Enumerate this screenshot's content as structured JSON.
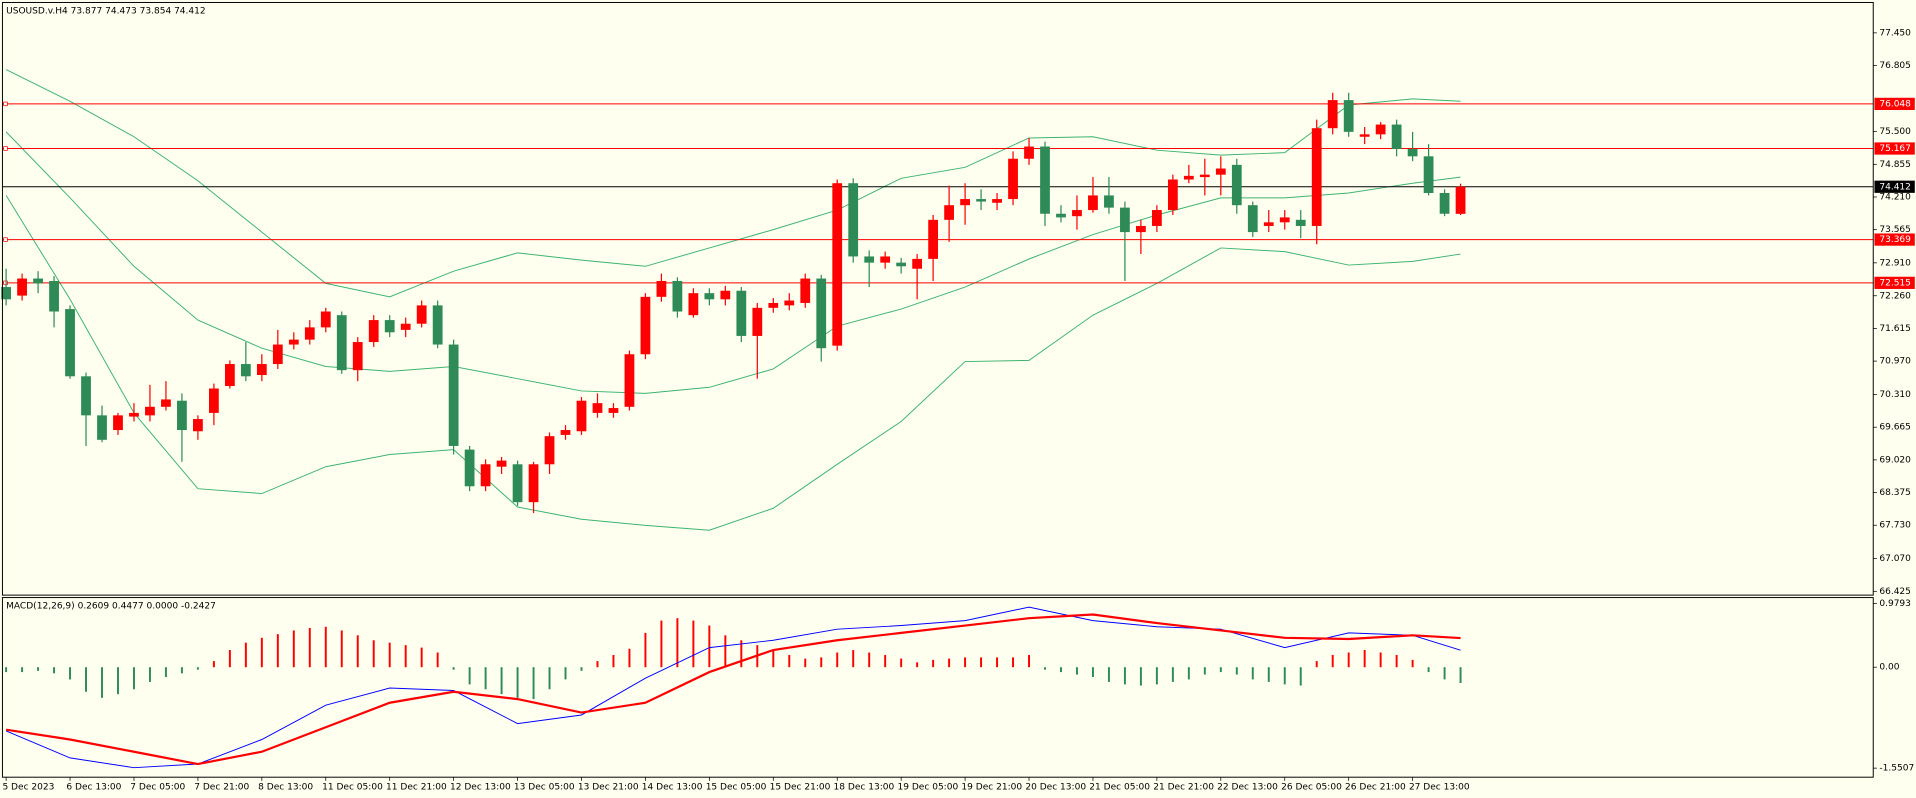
{
  "chart_data": [
    {
      "type": "candlestick",
      "title": "USOUSD.v.H4  73.877 74.473 73.854 74.412",
      "categories": [
        "5 Dec 2023",
        null,
        null,
        null,
        "6 Dec 13:00",
        null,
        null,
        null,
        "7 Dec 05:00",
        null,
        null,
        null,
        "7 Dec 21:00",
        null,
        null,
        null,
        "8 Dec 13:00",
        null,
        null,
        null,
        "11 Dec 05:00",
        null,
        null,
        null,
        "11 Dec 21:00",
        null,
        null,
        null,
        "12 Dec 13:00",
        null,
        null,
        null,
        "13 Dec 05:00",
        null,
        null,
        null,
        "13 Dec 21:00",
        null,
        null,
        null,
        "14 Dec 13:00",
        null,
        null,
        null,
        "15 Dec 05:00",
        null,
        null,
        null,
        "15 Dec 21:00",
        null,
        null,
        null,
        "18 Dec 13:00",
        null,
        null,
        null,
        "19 Dec 05:00",
        null,
        null,
        null,
        "19 Dec 21:00",
        null,
        null,
        null,
        "20 Dec 13:00",
        null,
        null,
        null,
        "21 Dec 05:00",
        null,
        null,
        null,
        "21 Dec 21:00",
        null,
        null,
        null,
        "22 Dec 13:00",
        null,
        null,
        null,
        "26 Dec 05:00",
        null,
        null,
        null,
        "26 Dec 21:00",
        null,
        null,
        null,
        "27 Dec 13:00",
        null,
        null,
        null
      ],
      "open": [
        72.432,
        72.263,
        72.6,
        72.552,
        71.997,
        70.67,
        69.899,
        69.609,
        69.875,
        69.899,
        70.068,
        70.188,
        69.585,
        69.947,
        70.478,
        70.912,
        70.695,
        70.912,
        71.297,
        71.394,
        71.636,
        71.877,
        70.791,
        71.346,
        71.78,
        71.587,
        71.708,
        72.07,
        71.297,
        69.223,
        68.499,
        68.885,
        68.933,
        68.185,
        68.933,
        69.513,
        69.585,
        69.947,
        69.947,
        70.068,
        71.105,
        72.239,
        72.552,
        71.877,
        72.311,
        72.19,
        72.359,
        71.467,
        72.022,
        72.07,
        72.118,
        72.6,
        71.275,
        74.482,
        73.036,
        72.914,
        72.914,
        72.794,
        72.988,
        73.759,
        74.048,
        74.169,
        74.096,
        74.169,
        74.965,
        75.206,
        73.879,
        73.831,
        73.952,
        74.241,
        74.0,
        73.517,
        73.638,
        73.952,
        74.555,
        74.603,
        74.651,
        74.844,
        74.048,
        73.638,
        73.71,
        73.759,
        73.638,
        75.568,
        76.123,
        75.399,
        75.447,
        75.64,
        75.158,
        75.013,
        74.289,
        73.877
      ],
      "high": [
        72.794,
        72.697,
        72.745,
        72.649,
        72.07,
        70.743,
        70.092,
        69.947,
        70.14,
        70.502,
        70.574,
        70.333,
        69.899,
        70.526,
        70.984,
        71.346,
        71.105,
        71.587,
        71.539,
        71.78,
        72.022,
        71.949,
        71.443,
        71.877,
        71.877,
        71.829,
        72.166,
        72.166,
        71.394,
        69.295,
        69.03,
        69.078,
        69.006,
        68.982,
        69.561,
        69.706,
        70.26,
        70.333,
        70.14,
        71.177,
        72.311,
        72.697,
        72.625,
        72.408,
        72.408,
        72.456,
        72.432,
        72.118,
        72.215,
        72.311,
        72.697,
        72.673,
        74.555,
        74.579,
        73.156,
        73.132,
        73.008,
        73.083,
        73.855,
        74.434,
        74.482,
        74.362,
        74.289,
        75.11,
        75.375,
        75.303,
        74.048,
        74.241,
        74.603,
        74.603,
        74.12,
        73.759,
        74.048,
        74.651,
        74.844,
        74.965,
        75.013,
        74.965,
        74.12,
        73.952,
        73.952,
        73.952,
        75.737,
        76.268,
        76.268,
        75.592,
        75.689,
        75.737,
        75.496,
        75.254,
        74.362,
        74.473
      ],
      "low": [
        72.07,
        72.166,
        72.311,
        71.636,
        70.622,
        69.295,
        69.368,
        69.513,
        69.778,
        69.778,
        69.995,
        68.982,
        69.416,
        69.706,
        70.429,
        70.574,
        70.574,
        70.815,
        71.201,
        71.297,
        71.539,
        70.719,
        70.574,
        71.25,
        71.443,
        71.443,
        71.636,
        71.225,
        69.126,
        68.403,
        68.403,
        68.741,
        68.113,
        67.969,
        68.741,
        69.416,
        69.513,
        69.851,
        69.851,
        69.995,
        71.008,
        72.142,
        71.829,
        71.829,
        72.07,
        72.07,
        71.346,
        70.622,
        71.925,
        71.973,
        72.022,
        70.96,
        71.177,
        72.914,
        72.432,
        72.794,
        72.697,
        72.19,
        72.552,
        73.325,
        73.662,
        73.952,
        73.952,
        74.048,
        74.844,
        73.638,
        73.71,
        73.566,
        73.9,
        73.879,
        72.552,
        73.083,
        73.517,
        73.855,
        74.482,
        74.241,
        74.241,
        73.879,
        73.421,
        73.517,
        73.566,
        73.397,
        73.276,
        75.447,
        75.399,
        75.254,
        75.351,
        75.013,
        74.917,
        74.241,
        73.831,
        73.854
      ],
      "close": [
        72.19,
        72.6,
        72.504,
        71.949,
        70.67,
        69.899,
        69.416,
        69.899,
        69.947,
        70.068,
        70.213,
        69.609,
        69.826,
        70.429,
        70.912,
        70.67,
        70.912,
        71.297,
        71.394,
        71.636,
        71.949,
        70.791,
        71.346,
        71.78,
        71.539,
        71.708,
        72.07,
        71.297,
        69.295,
        68.499,
        68.933,
        69.006,
        68.185,
        68.933,
        69.488,
        69.609,
        70.188,
        70.14,
        70.043,
        71.105,
        72.239,
        72.552,
        71.949,
        72.311,
        72.19,
        72.359,
        71.467,
        72.022,
        72.118,
        72.166,
        72.6,
        71.225,
        74.482,
        73.036,
        72.914,
        73.036,
        72.842,
        72.988,
        73.759,
        74.048,
        74.169,
        74.12,
        74.169,
        74.965,
        75.206,
        73.879,
        73.807,
        73.952,
        74.241,
        74.0,
        73.517,
        73.638,
        73.952,
        74.555,
        74.627,
        74.651,
        74.772,
        74.048,
        73.517,
        73.71,
        73.807,
        73.638,
        75.568,
        76.123,
        75.496,
        75.447,
        75.64,
        75.158,
        75.013,
        74.289,
        73.879,
        74.412
      ],
      "up_color": "#ff0000",
      "down_color": "#2e8b57",
      "ylim": [
        66.35,
        78.05
      ],
      "yticks": [
        {
          "value": 77.45,
          "label": "77.450"
        },
        76.805,
        {
          "value": 75.5,
          "label": "75.500"
        },
        74.855,
        {
          "value": 74.21,
          "label": "74.210"
        },
        73.565,
        {
          "value": 72.91,
          "label": "72.910"
        },
        {
          "value": 72.26,
          "label": "72.260"
        },
        71.615,
        {
          "value": 70.97,
          "label": "70.970"
        },
        {
          "value": 70.31,
          "label": "70.310"
        },
        69.665,
        {
          "value": 69.02,
          "label": "69.020"
        },
        68.375,
        {
          "value": 67.73,
          "label": "67.730"
        },
        {
          "value": 67.07,
          "label": "67.070"
        },
        66.425
      ],
      "levels": [
        {
          "value": 76.048,
          "color": "#ff0000"
        },
        {
          "value": 75.167,
          "color": "#ff0000"
        },
        {
          "value": 73.369,
          "color": "#ff0000"
        },
        {
          "value": 72.515,
          "color": "#ff0000"
        }
      ],
      "price_line": {
        "value": 74.412,
        "color": "#000000"
      },
      "overlays": [
        {
          "color": "#3cb371",
          "x": [
            0,
            4,
            8,
            12,
            16,
            20,
            24,
            28,
            32,
            36,
            40,
            44,
            48,
            52,
            56,
            60,
            64,
            68,
            72,
            76,
            80,
            84,
            88,
            91
          ],
          "values": [
            76.726,
            76.099,
            75.399,
            74.531,
            73.517,
            72.504,
            72.239,
            72.745,
            73.107,
            72.963,
            72.842,
            73.204,
            73.566,
            73.952,
            74.579,
            74.796,
            75.375,
            75.399,
            75.134,
            75.037,
            75.085,
            76.026,
            76.147,
            76.099
          ]
        },
        {
          "color": "#3cb371",
          "x": [
            0,
            4,
            8,
            12,
            16,
            20,
            24,
            28,
            32,
            36,
            40,
            44,
            48,
            52,
            56,
            60,
            64,
            68,
            72,
            76,
            80,
            84,
            88,
            91
          ],
          "values": [
            75.496,
            74.193,
            72.842,
            71.78,
            71.225,
            70.864,
            70.767,
            70.864,
            70.623,
            70.381,
            70.333,
            70.453,
            70.815,
            71.66,
            71.997,
            72.432,
            72.986,
            73.469,
            73.855,
            74.193,
            74.193,
            74.289,
            74.482,
            74.603
          ]
        },
        {
          "color": "#3cb371",
          "x": [
            0,
            4,
            8,
            12,
            16,
            20,
            24,
            28,
            32,
            36,
            40,
            44,
            48,
            52,
            56,
            60,
            64,
            68,
            72,
            76,
            80,
            84,
            88,
            91
          ],
          "values": [
            74.241,
            72.19,
            69.947,
            68.451,
            68.355,
            68.885,
            69.126,
            69.223,
            68.089,
            67.848,
            67.727,
            67.631,
            68.065,
            68.933,
            69.778,
            70.961,
            70.984,
            71.877,
            72.504,
            73.204,
            73.131,
            72.866,
            72.939,
            73.083
          ]
        }
      ]
    },
    {
      "type": "macd",
      "title": "MACD(12,26,9) 0.2609 0.4477 0.0000 -0.2427",
      "values": [
        -0.075,
        -0.075,
        -0.056,
        -0.094,
        -0.188,
        -0.377,
        -0.471,
        -0.414,
        -0.339,
        -0.226,
        -0.151,
        -0.094,
        -0.038,
        0.094,
        0.264,
        0.377,
        0.452,
        0.508,
        0.565,
        0.603,
        0.621,
        0.565,
        0.49,
        0.414,
        0.377,
        0.339,
        0.301,
        0.226,
        -0.038,
        -0.264,
        -0.339,
        -0.414,
        -0.471,
        -0.49,
        -0.339,
        -0.188,
        -0.056,
        0.094,
        0.188,
        0.283,
        0.527,
        0.716,
        0.753,
        0.716,
        0.64,
        0.49,
        0.414,
        0.339,
        0.264,
        0.188,
        0.132,
        0.151,
        0.226,
        0.264,
        0.226,
        0.188,
        0.132,
        0.075,
        0.113,
        0.132,
        0.151,
        0.151,
        0.151,
        0.151,
        0.188,
        -0.038,
        -0.075,
        -0.113,
        -0.151,
        -0.226,
        -0.264,
        -0.282,
        -0.264,
        -0.226,
        -0.188,
        -0.113,
        -0.075,
        -0.113,
        -0.188,
        -0.226,
        -0.264,
        -0.282,
        0.094,
        0.188,
        0.226,
        0.264,
        0.226,
        0.188,
        0.113,
        -0.075,
        -0.188,
        -0.243
      ],
      "positive_color": "#ff0000",
      "negative_color": "#2e8b57",
      "series": [
        {
          "color": "#0000ff",
          "x": [
            0,
            4,
            8,
            12,
            16,
            20,
            24,
            28,
            32,
            36,
            40,
            44,
            48,
            52,
            56,
            60,
            64,
            68,
            72,
            76,
            80,
            84,
            88,
            91
          ],
          "values": [
            -0.979,
            -1.394,
            -1.544,
            -1.488,
            -1.111,
            -0.584,
            -0.32,
            -0.358,
            -0.866,
            -0.734,
            -0.169,
            0.301,
            0.414,
            0.584,
            0.64,
            0.716,
            0.923,
            0.716,
            0.621,
            0.584,
            0.301,
            0.527,
            0.49,
            0.2609
          ]
        },
        {
          "color": "#ff0000",
          "x": [
            0,
            4,
            8,
            12,
            16,
            20,
            24,
            28,
            32,
            36,
            40,
            44,
            48,
            52,
            56,
            60,
            64,
            68,
            72,
            76,
            80,
            84,
            88,
            91
          ],
          "values": [
            -0.96,
            -1.111,
            -1.299,
            -1.488,
            -1.299,
            -0.923,
            -0.546,
            -0.377,
            -0.49,
            -0.697,
            -0.546,
            -0.075,
            0.264,
            0.414,
            0.527,
            0.64,
            0.753,
            0.81,
            0.678,
            0.565,
            0.452,
            0.433,
            0.49,
            0.4477
          ]
        }
      ],
      "ylim": [
        -1.69,
        1.07
      ],
      "yticks": [
        0.9793,
        {
          "value": 0,
          "label": "0.00"
        },
        -1.5507
      ]
    }
  ]
}
